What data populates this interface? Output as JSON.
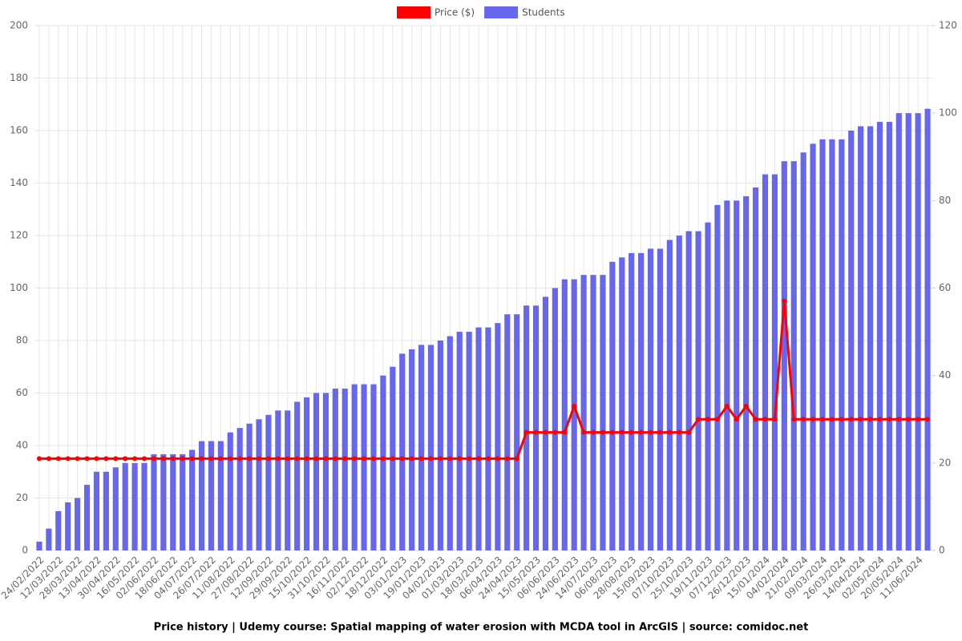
{
  "chart_data": {
    "type": "bar-line",
    "title": "Price history | Udemy course: Spatial mapping of water erosion with MCDA tool in ArcGIS | source: comidoc.net",
    "categories": [
      "24/02/2022",
      null,
      "12/03/2022",
      null,
      "28/03/2022",
      null,
      "13/04/2022",
      null,
      "30/04/2022",
      null,
      "16/05/2022",
      null,
      "02/06/2022",
      null,
      "18/06/2022",
      null,
      "04/07/2022",
      null,
      "26/07/2022",
      null,
      "11/08/2022",
      null,
      "27/08/2022",
      null,
      "12/09/2022",
      null,
      "29/09/2022",
      null,
      "15/10/2022",
      null,
      "31/10/2022",
      null,
      "16/11/2022",
      null,
      "02/12/2022",
      null,
      "18/12/2022",
      null,
      "03/01/2023",
      null,
      "19/01/2023",
      null,
      "04/02/2023",
      null,
      "01/03/2023",
      null,
      "18/03/2023",
      null,
      "06/04/2023",
      null,
      "24/04/2023",
      null,
      "15/05/2023",
      null,
      "06/06/2023",
      null,
      "24/06/2023",
      null,
      "14/07/2023",
      null,
      "06/08/2023",
      null,
      "28/08/2023",
      null,
      "15/09/2023",
      null,
      "07/10/2023",
      null,
      "25/10/2023",
      null,
      "19/11/2023",
      null,
      "07/12/2023",
      null,
      "26/12/2023",
      null,
      "15/01/2024",
      null,
      "04/02/2024",
      null,
      "21/02/2024",
      null,
      "09/03/2024",
      null,
      "26/03/2024",
      null,
      "14/04/2024",
      null,
      "02/05/2024",
      null,
      "20/05/2024",
      null,
      "11/06/2024",
      null
    ],
    "series": [
      {
        "name": "Price ($)",
        "type": "line",
        "color": "#ff0000",
        "values": [
          35,
          35,
          35,
          35,
          35,
          35,
          35,
          35,
          35,
          35,
          35,
          35,
          35,
          35,
          35,
          35,
          35,
          35,
          35,
          35,
          35,
          35,
          35,
          35,
          35,
          35,
          35,
          35,
          35,
          35,
          35,
          35,
          35,
          35,
          35,
          35,
          35,
          35,
          35,
          35,
          35,
          35,
          35,
          35,
          35,
          35,
          35,
          35,
          35,
          35,
          35,
          45,
          45,
          45,
          45,
          45,
          55,
          45,
          45,
          45,
          45,
          45,
          45,
          45,
          45,
          45,
          45,
          45,
          45,
          50,
          50,
          50,
          55,
          50,
          55,
          50,
          50,
          50,
          95,
          50,
          50,
          50,
          50,
          50,
          50,
          50,
          50,
          50,
          50,
          50,
          50,
          50,
          50,
          50
        ]
      },
      {
        "name": "Students",
        "type": "bar",
        "axis": "y2",
        "color": "#6666ee",
        "values": [
          2,
          5,
          9,
          11,
          12,
          15,
          18,
          18,
          19,
          20,
          20,
          20,
          22,
          22,
          22,
          22,
          23,
          25,
          25,
          25,
          27,
          28,
          29,
          30,
          31,
          32,
          32,
          34,
          35,
          36,
          36,
          37,
          37,
          38,
          38,
          38,
          40,
          42,
          45,
          46,
          47,
          47,
          48,
          49,
          50,
          50,
          51,
          51,
          52,
          54,
          54,
          56,
          56,
          58,
          60,
          62,
          62,
          63,
          63,
          63,
          66,
          67,
          68,
          68,
          69,
          69,
          71,
          72,
          73,
          73,
          75,
          79,
          80,
          80,
          81,
          83,
          86,
          86,
          89,
          89,
          91,
          93,
          94,
          94,
          94,
          96,
          97,
          97,
          98,
          98,
          100,
          100,
          100,
          101
        ]
      }
    ],
    "ylim": [
      0,
      200
    ],
    "yticks": [
      0,
      20,
      40,
      60,
      80,
      100,
      120,
      140,
      160,
      180,
      200
    ],
    "y2lim": [
      0,
      120
    ],
    "y2ticks": [
      0,
      20,
      40,
      60,
      80,
      100,
      120
    ],
    "grid": true,
    "legend": "top"
  }
}
